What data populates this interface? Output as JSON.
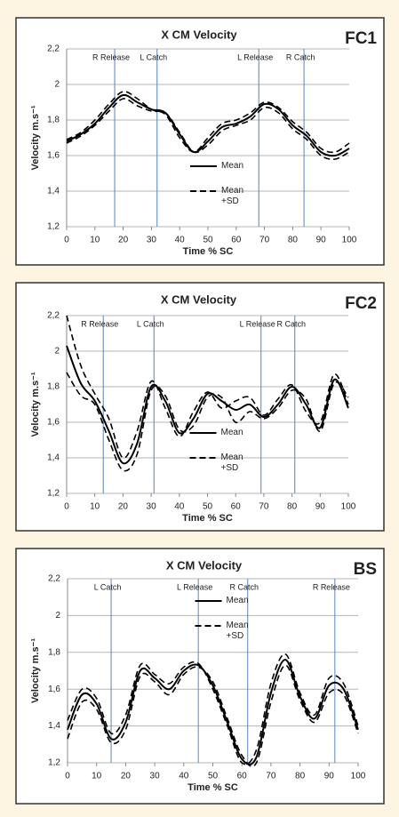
{
  "chart_data": [
    {
      "type": "line",
      "title": "X CM Velocity",
      "label": "FC1",
      "ylabel": "Velocity m.s⁻¹",
      "xlabel": "Time % SC",
      "x": [
        0,
        5,
        10,
        15,
        20,
        25,
        30,
        35,
        40,
        45,
        50,
        55,
        60,
        65,
        70,
        75,
        80,
        85,
        90,
        95,
        100
      ],
      "series": [
        {
          "name": "Mean",
          "color": "#000000",
          "dash": false,
          "values": [
            1.68,
            1.72,
            1.78,
            1.87,
            1.94,
            1.9,
            1.86,
            1.84,
            1.72,
            1.62,
            1.68,
            1.76,
            1.78,
            1.82,
            1.89,
            1.86,
            1.77,
            1.71,
            1.62,
            1.6,
            1.64
          ]
        },
        {
          "name": "Mean +SD",
          "color": "#000000",
          "dash": true,
          "values": [
            1.69,
            1.73,
            1.8,
            1.89,
            1.96,
            1.92,
            1.86,
            1.83,
            1.7,
            1.62,
            1.7,
            1.78,
            1.8,
            1.84,
            1.9,
            1.87,
            1.79,
            1.73,
            1.64,
            1.62,
            1.67
          ]
        },
        {
          "color": "#000000",
          "dash": true,
          "values": [
            1.67,
            1.71,
            1.77,
            1.85,
            1.92,
            1.88,
            1.85,
            1.84,
            1.73,
            1.62,
            1.66,
            1.74,
            1.77,
            1.8,
            1.87,
            1.84,
            1.75,
            1.69,
            1.6,
            1.58,
            1.62
          ]
        }
      ],
      "annotations": [
        {
          "text": "R Release",
          "x": 17
        },
        {
          "text": "L Catch",
          "x": 32
        },
        {
          "text": "L Release",
          "x": 68
        },
        {
          "text": "R Catch",
          "x": 84
        }
      ],
      "xlim": [
        0,
        100
      ],
      "xticks": [
        0,
        10,
        20,
        30,
        40,
        50,
        60,
        70,
        80,
        90,
        100
      ],
      "ylim": [
        1.2,
        2.2
      ],
      "yticks": [
        {
          "value": 1.2,
          "label": "1,2"
        },
        {
          "value": 1.4,
          "label": "1,4"
        },
        {
          "value": 1.6,
          "label": "1,6"
        },
        {
          "value": 1.8,
          "label": "1,8"
        },
        2,
        {
          "value": 2.2,
          "label": "2,2"
        }
      ],
      "grid": true,
      "legend": "lower center"
    },
    {
      "type": "line",
      "title": "X CM Velocity",
      "label": "FC2",
      "ylabel": "Velocity m.s⁻¹",
      "xlabel": "Time % SC",
      "x": [
        0,
        5,
        10,
        15,
        20,
        25,
        30,
        35,
        40,
        45,
        50,
        55,
        60,
        65,
        70,
        75,
        80,
        85,
        90,
        95,
        100
      ],
      "series": [
        {
          "name": "Mean",
          "color": "#000000",
          "dash": false,
          "values": [
            2.03,
            1.82,
            1.72,
            1.55,
            1.37,
            1.48,
            1.8,
            1.72,
            1.54,
            1.62,
            1.76,
            1.72,
            1.67,
            1.7,
            1.63,
            1.7,
            1.8,
            1.7,
            1.57,
            1.84,
            1.68
          ]
        },
        {
          "name": "Mean +SD",
          "color": "#000000",
          "dash": true,
          "values": [
            2.2,
            1.92,
            1.76,
            1.62,
            1.4,
            1.55,
            1.83,
            1.68,
            1.52,
            1.66,
            1.77,
            1.68,
            1.72,
            1.74,
            1.64,
            1.73,
            1.81,
            1.66,
            1.6,
            1.87,
            1.7
          ]
        },
        {
          "color": "#000000",
          "dash": true,
          "values": [
            1.88,
            1.75,
            1.7,
            1.5,
            1.33,
            1.42,
            1.78,
            1.75,
            1.56,
            1.58,
            1.74,
            1.74,
            1.6,
            1.66,
            1.62,
            1.68,
            1.78,
            1.73,
            1.55,
            1.82,
            1.74
          ]
        }
      ],
      "annotations": [
        {
          "text": "R Release",
          "x": 13
        },
        {
          "text": "L Catch",
          "x": 31
        },
        {
          "text": "L Release",
          "x": 69
        },
        {
          "text": "R Catch",
          "x": 81
        }
      ],
      "xlim": [
        0,
        100
      ],
      "xticks": [
        0,
        10,
        20,
        30,
        40,
        50,
        60,
        70,
        80,
        90,
        100
      ],
      "ylim": [
        1.2,
        2.2
      ],
      "yticks": [
        {
          "value": 1.2,
          "label": "1,2"
        },
        {
          "value": 1.4,
          "label": "1,4"
        },
        {
          "value": 1.6,
          "label": "1,6"
        },
        {
          "value": 1.8,
          "label": "1,8"
        },
        2,
        {
          "value": 2.2,
          "label": "2,2"
        }
      ],
      "grid": true,
      "legend": "lower center"
    },
    {
      "type": "line",
      "title": "X CM Velocity",
      "label": "BS",
      "ylabel": "Velocity m.s⁻¹",
      "xlabel": "Time % SC",
      "x": [
        0,
        5,
        10,
        15,
        20,
        25,
        30,
        35,
        40,
        45,
        50,
        55,
        60,
        65,
        70,
        75,
        80,
        85,
        90,
        95,
        100
      ],
      "series": [
        {
          "name": "Mean",
          "color": "#000000",
          "dash": false,
          "values": [
            1.38,
            1.57,
            1.52,
            1.33,
            1.42,
            1.7,
            1.66,
            1.6,
            1.7,
            1.73,
            1.62,
            1.42,
            1.22,
            1.23,
            1.58,
            1.76,
            1.56,
            1.44,
            1.62,
            1.6,
            1.38
          ]
        },
        {
          "name": "Mean +SD",
          "color": "#000000",
          "dash": true,
          "values": [
            1.43,
            1.6,
            1.55,
            1.36,
            1.46,
            1.73,
            1.68,
            1.63,
            1.72,
            1.74,
            1.6,
            1.4,
            1.2,
            1.27,
            1.63,
            1.79,
            1.58,
            1.46,
            1.66,
            1.63,
            1.4
          ]
        },
        {
          "color": "#000000",
          "dash": true,
          "values": [
            1.33,
            1.53,
            1.49,
            1.31,
            1.38,
            1.67,
            1.64,
            1.57,
            1.68,
            1.72,
            1.64,
            1.44,
            1.24,
            1.2,
            1.53,
            1.73,
            1.54,
            1.42,
            1.58,
            1.57,
            1.36
          ]
        }
      ],
      "annotations": [
        {
          "text": "L Catch",
          "x": 15
        },
        {
          "text": "L Release",
          "x": 45
        },
        {
          "text": "R Catch",
          "x": 62
        },
        {
          "text": "R Release",
          "x": 92
        }
      ],
      "xlim": [
        0,
        100
      ],
      "xticks": [
        0,
        10,
        20,
        30,
        40,
        50,
        60,
        70,
        80,
        90,
        100
      ],
      "ylim": [
        1.2,
        2.2
      ],
      "yticks": [
        {
          "value": 1.2,
          "label": "1,2"
        },
        {
          "value": 1.4,
          "label": "1,4"
        },
        {
          "value": 1.6,
          "label": "1,6"
        },
        {
          "value": 1.8,
          "label": "1,8"
        },
        2,
        {
          "value": 2.2,
          "label": "2,2"
        }
      ],
      "grid": true,
      "legend": "upper center"
    }
  ]
}
